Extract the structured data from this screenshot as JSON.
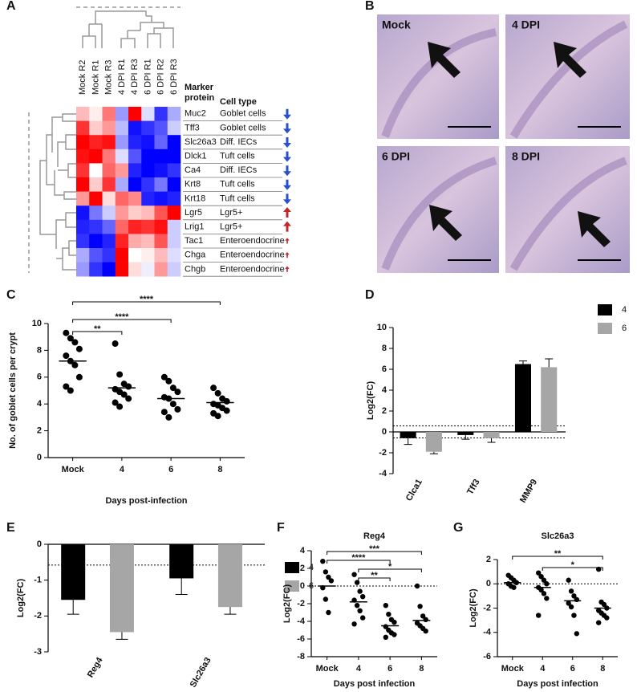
{
  "images": {
    "panel": "B",
    "labels": [
      "Mock",
      "4 DPI",
      "6 DPI",
      "8 DPI"
    ]
  },
  "chart_data": [
    {
      "type": "heatmap",
      "panel": "A",
      "columns": [
        "Mock R2",
        "Mock R1",
        "Mock R3",
        "4 DPI R1",
        "4 DPI R3",
        "6 DPI R1",
        "6 DPI R2",
        "6 DPI R3"
      ],
      "marker_header": [
        "Marker",
        "protein"
      ],
      "cell_type_header": "Cell type",
      "rows": [
        "Muc2",
        "Tff3",
        "Slc26a3",
        "Dlck1",
        "Ca4",
        "Krt8",
        "Krt18",
        "Lgr5",
        "Lrig1",
        "Tac1",
        "Chga",
        "Chgb"
      ],
      "cell_types": [
        "Goblet cells",
        "Goblet cells",
        "Diff. IECs",
        "Tuft cells",
        "Diff. IECs",
        "Tuft cells",
        "Tuft cells",
        "Lgr5+",
        "Lgr5+",
        "Enteroendocrine",
        "Enteroendocrine",
        "Enteroendocrine"
      ],
      "trend": [
        "down",
        "down",
        "down",
        "down",
        "down",
        "down",
        "down",
        "up",
        "up",
        "up-small",
        "up-small",
        "up-small"
      ],
      "zlim": [
        -1.5,
        1.5
      ],
      "values": [
        [
          0.4,
          0.1,
          0.8,
          -0.6,
          1.6,
          -0.2,
          -1.2,
          -0.5
        ],
        [
          1.2,
          0.3,
          0.6,
          -0.4,
          -1.4,
          -1.2,
          -1.0,
          -0.3
        ],
        [
          1.5,
          1.3,
          1.4,
          -0.6,
          -1.3,
          -1.4,
          -0.9,
          -1.5
        ],
        [
          1.4,
          1.5,
          0.8,
          -0.2,
          -1.0,
          -1.5,
          -1.5,
          -1.5
        ],
        [
          1.2,
          0.0,
          0.9,
          0.6,
          -1.3,
          -1.5,
          -1.4,
          -1.2
        ],
        [
          1.5,
          0.3,
          1.2,
          -0.5,
          -1.5,
          -1.2,
          -0.8,
          -1.5
        ],
        [
          0.6,
          1.5,
          0.2,
          0.9,
          0.7,
          -1.3,
          -1.4,
          -1.3
        ],
        [
          -1.4,
          -0.8,
          -0.3,
          0.6,
          0.3,
          0.4,
          1.0,
          1.5
        ],
        [
          -1.3,
          -1.2,
          -0.9,
          0.9,
          1.3,
          1.2,
          1.4,
          -0.3
        ],
        [
          -1.2,
          -1.5,
          -1.3,
          1.3,
          0.5,
          0.4,
          1.0,
          -0.3
        ],
        [
          -0.5,
          -1.0,
          -1.2,
          1.6,
          0.0,
          0.1,
          0.4,
          -0.2
        ],
        [
          -0.6,
          -1.2,
          -1.5,
          1.5,
          0.2,
          -0.1,
          0.6,
          -0.3
        ]
      ]
    },
    {
      "type": "dot",
      "panel": "C",
      "categories": [
        "Mock",
        "4",
        "6",
        "8"
      ],
      "y_label": "No. of goblet cells per crypt",
      "x_label": "Days post-infection",
      "ylim": [
        0,
        10
      ],
      "yticks": [
        0,
        2,
        4,
        6,
        8,
        10
      ],
      "points": [
        [
          9.3,
          8.9,
          8.6,
          8.1,
          7.6,
          7.2,
          6.9,
          6.0,
          5.3,
          5.0
        ],
        [
          8.5,
          6.2,
          5.5,
          5.3,
          5.1,
          4.9,
          4.7,
          4.4,
          4.1,
          3.8
        ],
        [
          6.0,
          5.7,
          5.2,
          4.9,
          4.5,
          4.4,
          4.0,
          3.6,
          3.4,
          3.0
        ],
        [
          5.2,
          4.8,
          4.4,
          4.2,
          4.0,
          3.9,
          3.7,
          3.5,
          3.3,
          3.1
        ]
      ],
      "means": [
        7.2,
        5.2,
        4.4,
        4.1
      ],
      "brackets": [
        {
          "between": [
            "Mock",
            "4"
          ],
          "label": "**"
        },
        {
          "between": [
            "Mock",
            "6"
          ],
          "label": "****"
        },
        {
          "between": [
            "Mock",
            "8"
          ],
          "label": "****"
        }
      ]
    },
    {
      "type": "bar",
      "panel": "D",
      "categories": [
        "Clca1",
        "Tff3",
        "MMP9"
      ],
      "y_label": "Log2(FC)",
      "ylim": [
        -4,
        10
      ],
      "yticks": [
        -4,
        -2,
        0,
        2,
        4,
        6,
        8,
        10
      ],
      "reference_lines": [
        0.58,
        -0.58
      ],
      "legend": "right",
      "series": [
        {
          "name": "4",
          "color": "#000000",
          "values": [
            -0.6,
            -0.3,
            6.5
          ],
          "errors": [
            0.6,
            0.4,
            0.3
          ]
        },
        {
          "name": "6",
          "color": "#a6a6a6",
          "values": [
            -1.9,
            -0.6,
            6.2
          ],
          "errors": [
            0.2,
            0.4,
            0.8
          ]
        }
      ]
    },
    {
      "type": "bar",
      "panel": "E",
      "categories": [
        "Reg4",
        "Slc26a3"
      ],
      "y_label": "Log2(FC)",
      "ylim": [
        -3,
        0
      ],
      "yticks": [
        -3,
        -2,
        -1,
        0
      ],
      "reference_lines": [
        -0.58
      ],
      "legend": "right",
      "series": [
        {
          "name": "4",
          "color": "#000000",
          "values": [
            -1.55,
            -0.95
          ],
          "errors": [
            0.4,
            0.45
          ]
        },
        {
          "name": "6",
          "color": "#a6a6a6",
          "values": [
            -2.45,
            -1.75
          ],
          "errors": [
            0.2,
            0.2
          ]
        }
      ]
    },
    {
      "type": "dot",
      "panel": "F",
      "title": "Reg4",
      "categories": [
        "Mock",
        "4",
        "6",
        "8"
      ],
      "y_label": "Log2(FC)",
      "x_label": "Days post infection",
      "ylim": [
        -8,
        4
      ],
      "yticks": [
        -8,
        -6,
        -4,
        -2,
        0,
        2,
        4
      ],
      "reference_lines": [
        0
      ],
      "points": [
        [
          2.8,
          1.6,
          1.0,
          0.6,
          -0.2,
          -1.5,
          -3.0
        ],
        [
          1.3,
          0.4,
          -0.6,
          -1.2,
          -1.6,
          -2.2,
          -2.8,
          -3.6,
          -4.3
        ],
        [
          -2.2,
          -3.2,
          -3.8,
          -4.1,
          -4.6,
          -5.0,
          -5.3,
          -5.5,
          -5.8
        ],
        [
          0.0,
          -2.3,
          -3.4,
          -3.8,
          -4.2,
          -4.5,
          -4.8,
          -5.1
        ]
      ],
      "means": [
        0.0,
        -1.8,
        -4.5,
        -3.9
      ],
      "brackets": [
        {
          "between": [
            "Mock",
            "8"
          ],
          "label": "***"
        },
        {
          "between": [
            "Mock",
            "6"
          ],
          "label": "****"
        },
        {
          "between": [
            "4",
            "8"
          ],
          "label": "*"
        },
        {
          "between": [
            "4",
            "6"
          ],
          "label": "**"
        }
      ]
    },
    {
      "type": "dot",
      "panel": "G",
      "title": "Slc26a3",
      "categories": [
        "Mock",
        "4",
        "6",
        "8"
      ],
      "y_label": "Log2(FC)",
      "x_label": "Days post infection",
      "ylim": [
        -6,
        2
      ],
      "yticks": [
        -6,
        -4,
        -2,
        0,
        2
      ],
      "reference_lines": [
        0
      ],
      "points": [
        [
          0.7,
          0.5,
          0.3,
          0.1,
          0.0,
          -0.2,
          -0.3
        ],
        [
          0.9,
          0.6,
          0.3,
          0.0,
          -0.3,
          -0.5,
          -0.8,
          -1.2,
          -2.6
        ],
        [
          0.3,
          -0.6,
          -1.0,
          -1.3,
          -1.6,
          -1.9,
          -2.6,
          -4.1
        ],
        [
          1.2,
          -1.5,
          -1.7,
          -2.0,
          -2.2,
          -2.4,
          -2.6,
          -2.8,
          -3.2
        ]
      ],
      "means": [
        0.1,
        -0.3,
        -1.4,
        -2.0
      ],
      "brackets": [
        {
          "between": [
            "Mock",
            "8"
          ],
          "label": "**"
        },
        {
          "between": [
            "4",
            "8"
          ],
          "label": "*"
        }
      ]
    }
  ]
}
